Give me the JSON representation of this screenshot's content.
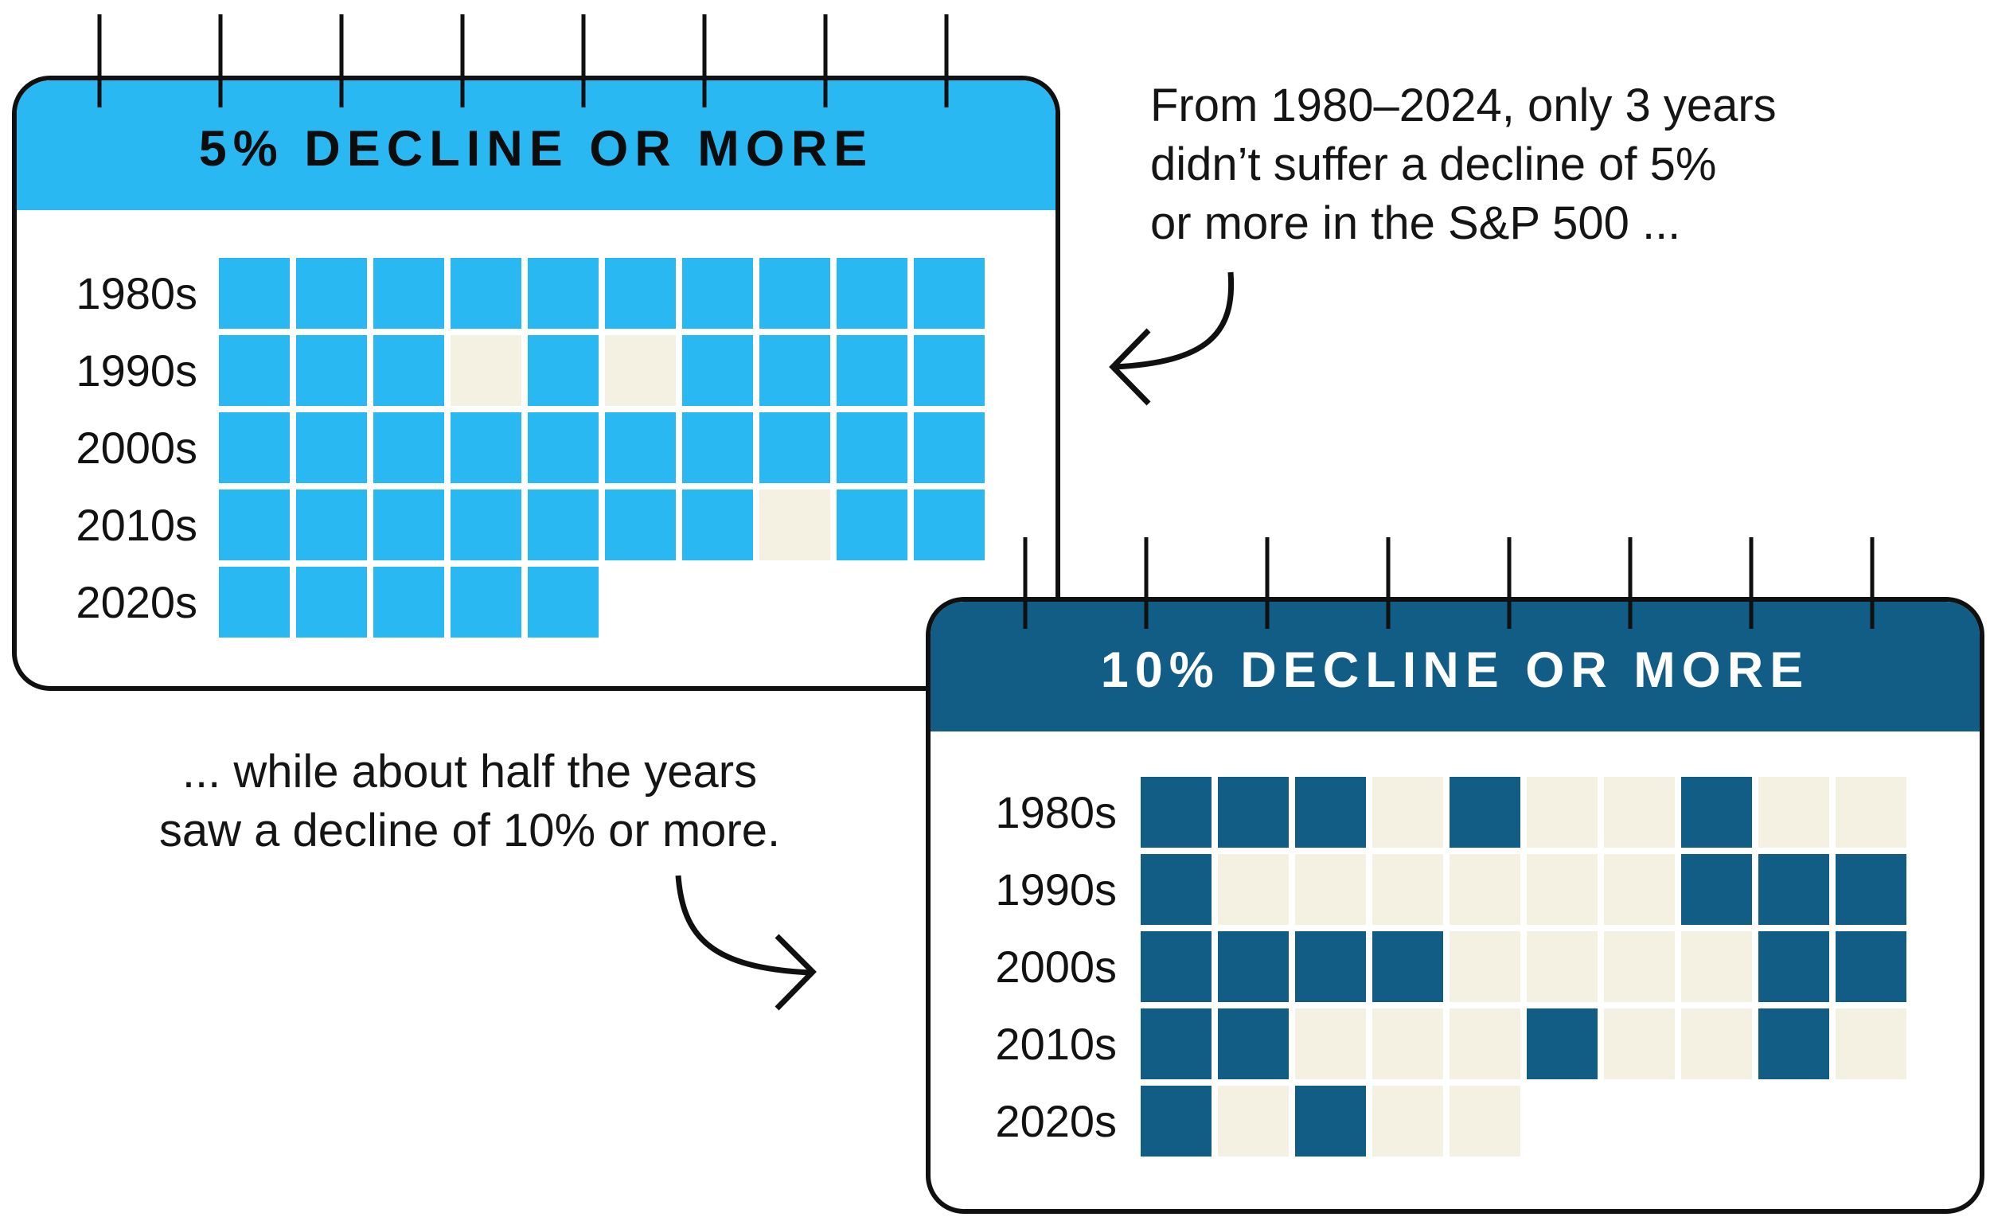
{
  "page": {
    "background": "#ffffff",
    "ink": "#101010"
  },
  "notes": {
    "five_pct": {
      "lines": [
        "From 1980–2024, only 3 years",
        "didn’t suffer a decline of 5%",
        "or more in the S&P 500 ..."
      ]
    },
    "ten_pct": {
      "lines": [
        "... while about half the years",
        "saw a decline of 10% or more."
      ]
    }
  },
  "panels": [
    {
      "id": "five-pct",
      "title": "5% DECLINE OR MORE",
      "colors": {
        "header_bg": "#2AB8F2",
        "title_text": "#0d0d0d",
        "filled": "#2AB8F2",
        "empty": "#F5F1E2",
        "label_text": "#121212",
        "border": "#101010"
      },
      "rows": [
        {
          "label": "1980s",
          "cells": [
            1,
            1,
            1,
            1,
            1,
            1,
            1,
            1,
            1,
            1
          ]
        },
        {
          "label": "1990s",
          "cells": [
            1,
            1,
            1,
            0,
            1,
            0,
            1,
            1,
            1,
            1
          ]
        },
        {
          "label": "2000s",
          "cells": [
            1,
            1,
            1,
            1,
            1,
            1,
            1,
            1,
            1,
            1
          ]
        },
        {
          "label": "2010s",
          "cells": [
            1,
            1,
            1,
            1,
            1,
            1,
            1,
            0,
            1,
            1
          ]
        },
        {
          "label": "2020s",
          "cells": [
            1,
            1,
            1,
            1,
            1
          ]
        }
      ]
    },
    {
      "id": "ten-pct",
      "title": "10% DECLINE OR MORE",
      "colors": {
        "header_bg": "#115D86",
        "title_text": "#ffffff",
        "filled": "#115D86",
        "empty": "#F5F1E2",
        "label_text": "#121212",
        "border": "#101010"
      },
      "rows": [
        {
          "label": "1980s",
          "cells": [
            1,
            1,
            1,
            0,
            1,
            0,
            0,
            1,
            0,
            0
          ]
        },
        {
          "label": "1990s",
          "cells": [
            1,
            0,
            0,
            0,
            0,
            0,
            0,
            1,
            1,
            1
          ]
        },
        {
          "label": "2000s",
          "cells": [
            1,
            1,
            1,
            1,
            0,
            0,
            0,
            0,
            1,
            1
          ]
        },
        {
          "label": "2010s",
          "cells": [
            1,
            1,
            0,
            0,
            0,
            1,
            0,
            0,
            1,
            0
          ]
        },
        {
          "label": "2020s",
          "cells": [
            1,
            0,
            1,
            0,
            0
          ]
        }
      ]
    }
  ],
  "chart_data": [
    {
      "type": "heatmap",
      "title": "5% DECLINE OR MORE",
      "rows": [
        "1980s",
        "1990s",
        "2000s",
        "2010s",
        "2020s"
      ],
      "columns": [
        0,
        1,
        2,
        3,
        4,
        5,
        6,
        7,
        8,
        9
      ],
      "values": [
        [
          1,
          1,
          1,
          1,
          1,
          1,
          1,
          1,
          1,
          1
        ],
        [
          1,
          1,
          1,
          0,
          1,
          0,
          1,
          1,
          1,
          1
        ],
        [
          1,
          1,
          1,
          1,
          1,
          1,
          1,
          1,
          1,
          1
        ],
        [
          1,
          1,
          1,
          1,
          1,
          1,
          1,
          0,
          1,
          1
        ],
        [
          1,
          1,
          1,
          1,
          1
        ]
      ],
      "filled_means": "year saw an S&P 500 decline of 5% or more",
      "empty_means": "year had no decline of 5% or more",
      "filled_color": "#2AB8F2",
      "empty_color": "#F5F1E2",
      "annotation": "From 1980–2024, only 3 years didn’t suffer a decline of 5% or more in the S&P 500 ...",
      "legend_position": "none",
      "grid": false
    },
    {
      "type": "heatmap",
      "title": "10% DECLINE OR MORE",
      "rows": [
        "1980s",
        "1990s",
        "2000s",
        "2010s",
        "2020s"
      ],
      "columns": [
        0,
        1,
        2,
        3,
        4,
        5,
        6,
        7,
        8,
        9
      ],
      "values": [
        [
          1,
          1,
          1,
          0,
          1,
          0,
          0,
          1,
          0,
          0
        ],
        [
          1,
          0,
          0,
          0,
          0,
          0,
          0,
          1,
          1,
          1
        ],
        [
          1,
          1,
          1,
          1,
          0,
          0,
          0,
          0,
          1,
          1
        ],
        [
          1,
          1,
          0,
          0,
          0,
          1,
          0,
          0,
          1,
          0
        ],
        [
          1,
          0,
          1,
          0,
          0
        ]
      ],
      "filled_means": "year saw an S&P 500 decline of 10% or more",
      "empty_means": "year had no decline of 10% or more",
      "filled_color": "#115D86",
      "empty_color": "#F5F1E2",
      "annotation": "... while about half the years saw a decline of 10% or more.",
      "legend_position": "none",
      "grid": false
    }
  ]
}
